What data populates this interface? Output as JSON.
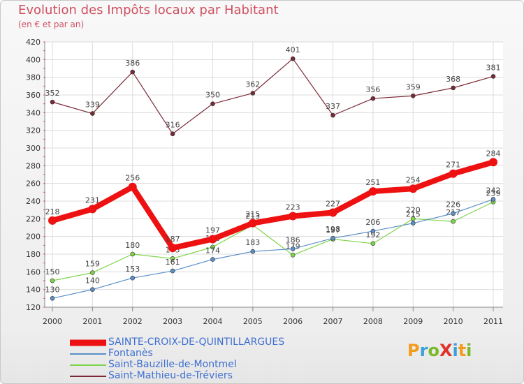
{
  "title": "Evolution des Impôts locaux par Habitant",
  "subtitle": "(en € et par an)",
  "logo": {
    "text": "ProXiti",
    "colors": [
      "#f39c1c",
      "#3aa0d8",
      "#7ab929",
      "#e0312a",
      "#3aa0d8",
      "#f39c1c",
      "#7ab929"
    ]
  },
  "chart_data": {
    "type": "line",
    "categories": [
      "2000",
      "2001",
      "2002",
      "2003",
      "2004",
      "2005",
      "2006",
      "2007",
      "2008",
      "2009",
      "2010",
      "2011"
    ],
    "ylim": [
      120,
      420
    ],
    "yticks": [
      120,
      140,
      160,
      180,
      200,
      220,
      240,
      260,
      280,
      300,
      320,
      340,
      360,
      380,
      400,
      420
    ],
    "grid": true,
    "series": [
      {
        "name": "Saint-Mathieu-de-Tréviers",
        "color": "#7a2a36",
        "values": [
          352,
          339,
          386,
          316,
          350,
          362,
          401,
          337,
          356,
          359,
          368,
          381
        ],
        "labels": [
          "352",
          "339",
          "386",
          "316",
          "350",
          "362",
          "401",
          "337",
          "356",
          "359",
          "368",
          "381"
        ]
      },
      {
        "name": "Saint-Bauzille-de-Montmel",
        "color": "#7fd44a",
        "values": [
          150,
          159,
          180,
          175,
          188,
          213,
          179,
          197,
          192,
          220,
          217,
          239
        ],
        "labels": [
          "150",
          "159",
          "180",
          "175",
          "188",
          "213",
          "179",
          "197",
          "192",
          "220",
          "217",
          "239"
        ]
      },
      {
        "name": "Fontanès",
        "color": "#5b8fc7",
        "values": [
          130,
          140,
          153,
          161,
          174,
          183,
          186,
          198,
          206,
          215,
          226,
          242
        ],
        "labels": [
          "130",
          "140",
          "153",
          "161",
          "174",
          "183",
          "186",
          "198",
          "206",
          "215",
          "226",
          "242"
        ]
      },
      {
        "name": "SAINTE-CROIX-DE-QUINTILLARGUES",
        "color": "#ee1111",
        "values": [
          218,
          231,
          256,
          187,
          197,
          215,
          223,
          227,
          251,
          254,
          271,
          284
        ],
        "labels": [
          "218",
          "231",
          "256",
          "187",
          "197",
          "215",
          "223",
          "227",
          "251",
          "254",
          "271",
          "284"
        ]
      }
    ],
    "legend": [
      {
        "name": "SAINTE-CROIX-DE-QUINTILLARGUES",
        "color": "#ee1111"
      },
      {
        "name": "Fontanès",
        "color": "#5b8fc7"
      },
      {
        "name": "Saint-Bauzille-de-Montmel",
        "color": "#7fd44a"
      },
      {
        "name": "Saint-Mathieu-de-Tréviers",
        "color": "#7a2a36"
      }
    ]
  }
}
